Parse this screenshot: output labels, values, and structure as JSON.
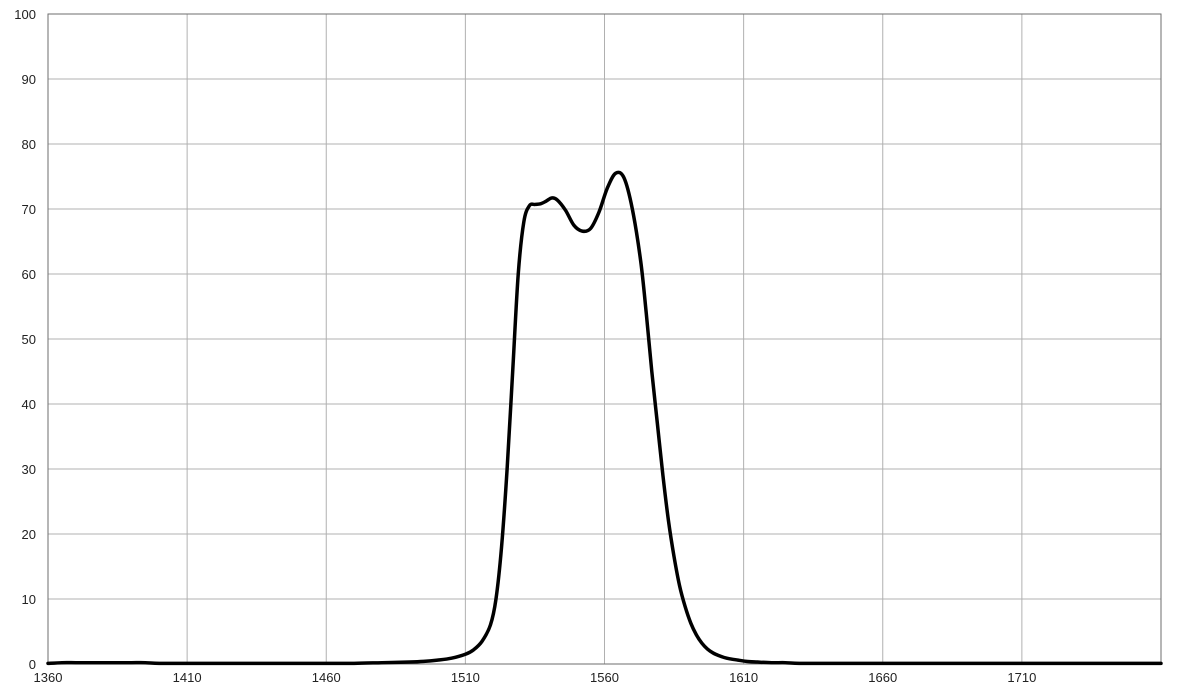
{
  "chart_data": {
    "type": "line",
    "title": "",
    "xlabel": "",
    "ylabel": "",
    "xlim": [
      1360,
      1760
    ],
    "ylim": [
      0,
      100
    ],
    "x_ticks": [
      1360,
      1410,
      1460,
      1510,
      1560,
      1610,
      1660,
      1710
    ],
    "x_tick_labels": [
      "1360",
      "1410",
      "1460",
      "1510",
      "1560",
      "1610",
      "1660",
      "1710"
    ],
    "y_ticks": [
      0,
      10,
      20,
      30,
      40,
      50,
      60,
      70,
      80,
      90,
      100
    ],
    "y_tick_labels": [
      "0",
      "10",
      "20",
      "30",
      "40",
      "50",
      "60",
      "70",
      "80",
      "90",
      "100"
    ],
    "grid": true,
    "legend": "none",
    "line_color": "#000000",
    "grid_color": "#b0b0b0",
    "series": [
      {
        "x": [
          1360,
          1365,
          1370,
          1375,
          1380,
          1385,
          1390,
          1395,
          1400,
          1410,
          1420,
          1430,
          1440,
          1450,
          1460,
          1470,
          1480,
          1490,
          1495,
          1500,
          1505,
          1510,
          1513,
          1516,
          1519,
          1521,
          1523,
          1525,
          1527,
          1529,
          1531,
          1533,
          1535,
          1537,
          1539,
          1541,
          1543,
          1546,
          1549,
          1552,
          1555,
          1558,
          1561,
          1564,
          1567,
          1570,
          1573,
          1575,
          1577,
          1579,
          1581,
          1583,
          1585,
          1587,
          1589,
          1591,
          1593,
          1595,
          1597,
          1599,
          1601,
          1603,
          1605,
          1608,
          1611,
          1615,
          1620,
          1625,
          1630,
          1640,
          1650,
          1660,
          1670,
          1680,
          1690,
          1700,
          1710,
          1720,
          1730,
          1740,
          1750,
          1760
        ],
        "y": [
          0.1,
          0.2,
          0.2,
          0.2,
          0.2,
          0.2,
          0.2,
          0.2,
          0.1,
          0.1,
          0.1,
          0.1,
          0.1,
          0.1,
          0.1,
          0.1,
          0.2,
          0.3,
          0.4,
          0.6,
          0.9,
          1.5,
          2.2,
          3.5,
          6.0,
          10.0,
          18.0,
          30.0,
          45.0,
          60.0,
          68.0,
          70.5,
          70.7,
          70.8,
          71.2,
          71.7,
          71.4,
          69.8,
          67.5,
          66.6,
          67.0,
          69.5,
          73.2,
          75.5,
          74.8,
          70.0,
          62.0,
          54.0,
          45.0,
          37.0,
          29.0,
          22.0,
          16.5,
          12.0,
          8.8,
          6.3,
          4.5,
          3.2,
          2.3,
          1.7,
          1.3,
          1.0,
          0.8,
          0.6,
          0.4,
          0.3,
          0.2,
          0.2,
          0.1,
          0.1,
          0.1,
          0.1,
          0.1,
          0.1,
          0.1,
          0.1,
          0.1,
          0.1,
          0.1,
          0.1,
          0.1,
          0.1
        ]
      }
    ]
  }
}
